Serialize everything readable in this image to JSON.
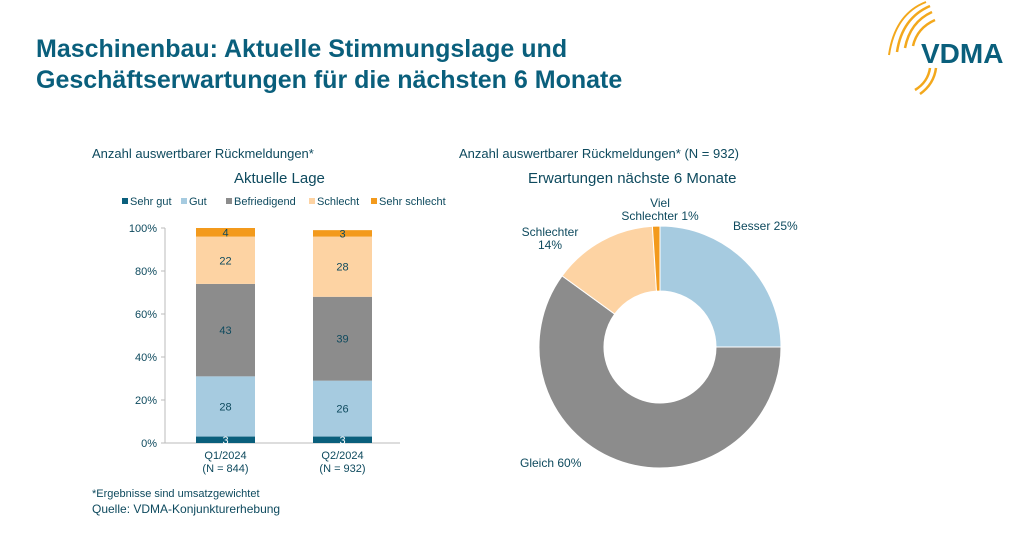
{
  "title_line1": "Maschinenbau: Aktuelle Stimmungslage und",
  "title_line2": "Geschäftserwartungen für die nächsten 6 Monate",
  "logo_text": "VDMA",
  "footnote": "*Ergebnisse sind umsatzgewichtet",
  "source": "Quelle: VDMA-Konjunkturerhebung",
  "chart_data": [
    {
      "type": "bar",
      "stacked": true,
      "subtitle": "Anzahl auswertbarer Rückmeldungen*",
      "title": "Aktuelle Lage",
      "categories": [
        "Q1/2024",
        "Q2/2024"
      ],
      "category_sub": [
        "(N = 844)",
        "(N = 932)"
      ],
      "yticks": [
        "0%",
        "20%",
        "40%",
        "60%",
        "80%",
        "100%"
      ],
      "ylim": [
        0,
        100
      ],
      "legend": "top",
      "series": [
        {
          "name": "Sehr gut",
          "values": [
            3,
            3
          ],
          "color": "#0a5f7c",
          "label_color": "#ffffff"
        },
        {
          "name": "Gut",
          "values": [
            28,
            26
          ],
          "color": "#a6cbe0",
          "label_color": "#0e4a5e"
        },
        {
          "name": "Befriedigend",
          "values": [
            43,
            39
          ],
          "color": "#8c8c8c",
          "label_color": "#0e4a5e"
        },
        {
          "name": "Schlecht",
          "values": [
            22,
            28
          ],
          "color": "#fdd3a3",
          "label_color": "#0e4a5e"
        },
        {
          "name": "Sehr schlecht",
          "values": [
            4,
            3
          ],
          "color": "#f39a1c",
          "label_color": "#0e4a5e"
        }
      ]
    },
    {
      "type": "pie",
      "donut": true,
      "subtitle": "Anzahl auswertbarer Rückmeldungen* (N = 932)",
      "title": "Erwartungen nächste 6 Monate",
      "slices": [
        {
          "label": "Besser 25%",
          "value": 25,
          "color": "#a6cbe0"
        },
        {
          "label": "Gleich  60%",
          "value": 60,
          "color": "#8c8c8c"
        },
        {
          "label": "Schlechter\n14%",
          "value": 14,
          "color": "#fdd3a3"
        },
        {
          "label": "Viel\nSchlechter 1%",
          "value": 1,
          "color": "#f39a1c"
        }
      ]
    }
  ]
}
